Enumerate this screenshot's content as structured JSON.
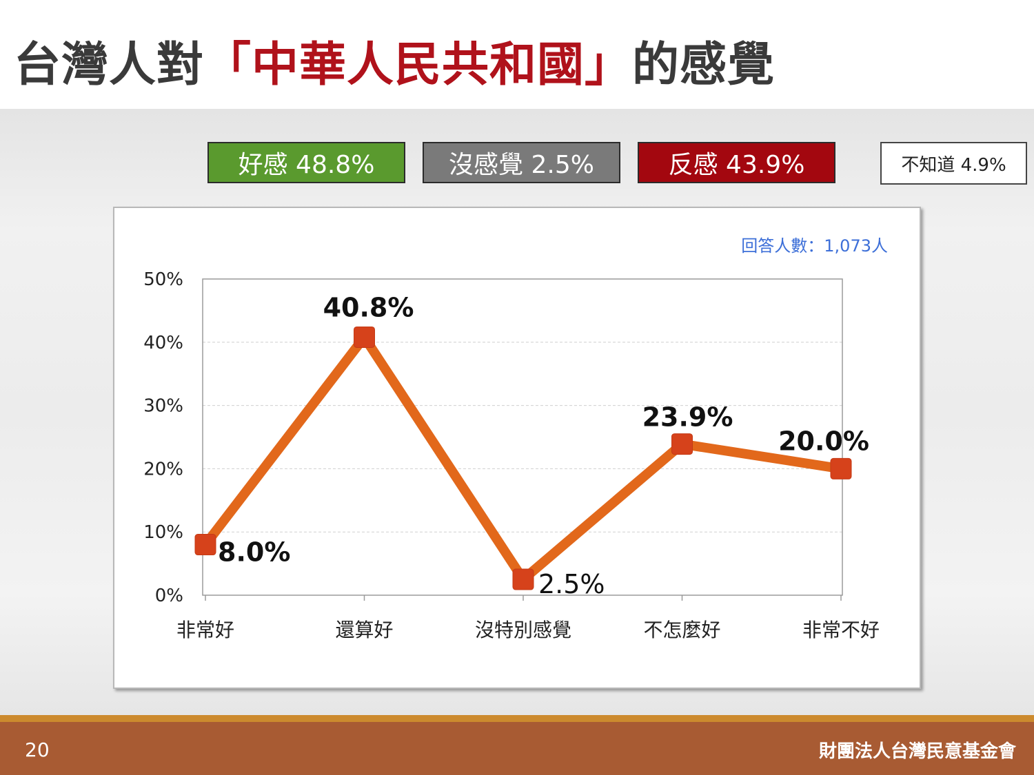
{
  "slide": {
    "title_pre": "台灣人對",
    "title_highlight": "「中華人民共和國」",
    "title_post": "的感覺",
    "page_number": "20",
    "organization": "財團法人台灣民意基金會"
  },
  "summary": {
    "favorable": "好感 48.8%",
    "no_feeling": "沒感覺 2.5%",
    "unfavorable": "反感 43.9%",
    "dont_know": "不知道 4.9%"
  },
  "colors": {
    "favorable": "#5a9a2e",
    "no_feeling": "#7a7a7a",
    "unfavorable": "#a3070f",
    "line": "#e2681b",
    "marker": "#d6421b",
    "title_highlight": "#b0121b",
    "note": "#3d6fd8"
  },
  "chart_data": {
    "type": "line",
    "title": "",
    "note": "回答人數：1,073人",
    "categories": [
      "非常好",
      "還算好",
      "沒特別感覺",
      "不怎麼好",
      "非常不好"
    ],
    "values": [
      8.0,
      40.8,
      2.5,
      23.9,
      20.0
    ],
    "labels": [
      "8.0%",
      "40.8%",
      "2.5%",
      "23.9%",
      "20.0%"
    ],
    "ylim": [
      0,
      50
    ],
    "yticks": [
      0,
      10,
      20,
      30,
      40,
      50
    ],
    "ytick_labels": [
      "0%",
      "10%",
      "20%",
      "30%",
      "40%",
      "50%"
    ],
    "grid": true,
    "xlabel": "",
    "ylabel": ""
  }
}
